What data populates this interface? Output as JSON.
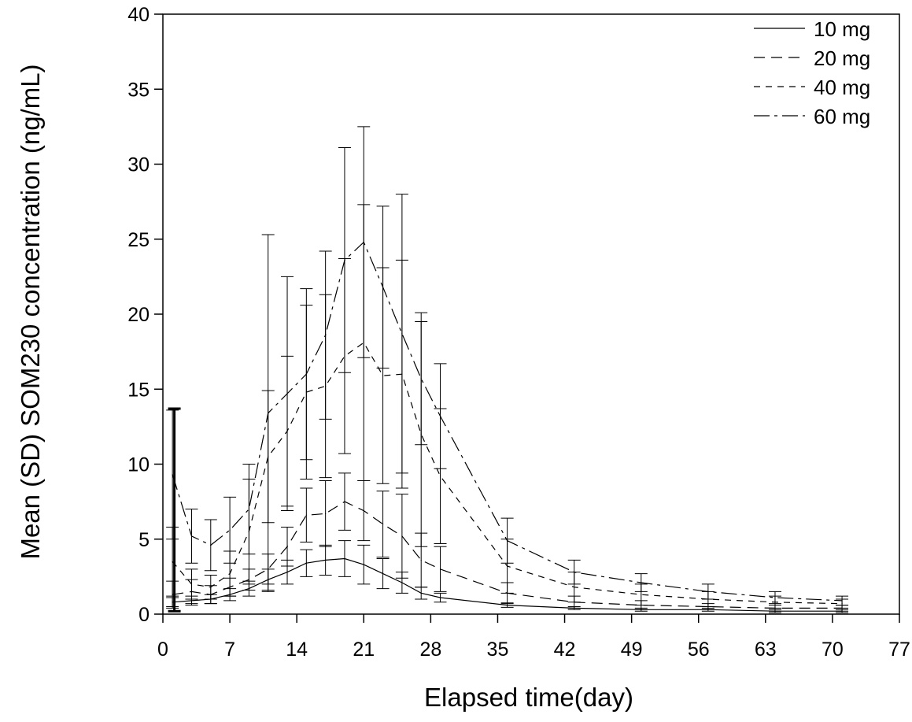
{
  "chart_data": {
    "type": "line",
    "xlabel": "Elapsed time(day)",
    "ylabel": "Mean (SD) SOM230 concentration (ng/mL)",
    "xlim": [
      0,
      77
    ],
    "ylim": [
      0,
      40
    ],
    "xticks": [
      0,
      7,
      14,
      21,
      28,
      35,
      42,
      49,
      56,
      63,
      70,
      77
    ],
    "yticks": [
      0,
      5,
      10,
      15,
      20,
      25,
      30,
      35,
      40
    ],
    "legend_position": "top-right",
    "grid": false,
    "series": [
      {
        "name": "10 mg",
        "dash": "",
        "x": [
          1,
          3,
          5,
          7,
          9,
          11,
          13,
          15,
          17,
          19,
          21,
          23,
          25,
          27,
          29,
          36,
          43,
          50,
          57,
          64,
          71
        ],
        "y": [
          0.8,
          0.9,
          1.0,
          1.3,
          1.7,
          2.3,
          2.8,
          3.4,
          3.6,
          3.7,
          3.3,
          2.7,
          2.1,
          1.4,
          1.1,
          0.6,
          0.4,
          0.3,
          0.3,
          0.2,
          0.2
        ],
        "sd": [
          0.3,
          0.3,
          0.3,
          0.4,
          0.5,
          0.7,
          0.8,
          0.9,
          1.0,
          1.2,
          1.3,
          1.0,
          0.7,
          0.4,
          0.3,
          0.15,
          0.1,
          0.1,
          0.1,
          0.1,
          0.1
        ]
      },
      {
        "name": "20 mg",
        "dash": "14,8",
        "x": [
          1,
          3,
          5,
          7,
          9,
          11,
          13,
          15,
          17,
          19,
          21,
          23,
          25,
          27,
          29,
          36,
          43,
          50,
          57,
          64,
          71
        ],
        "y": [
          1.3,
          1.5,
          1.3,
          1.8,
          2.3,
          3.0,
          4.5,
          6.6,
          6.7,
          7.5,
          6.9,
          6.0,
          5.2,
          3.6,
          3.0,
          1.4,
          0.8,
          0.6,
          0.5,
          0.4,
          0.4
        ],
        "sd": [
          0.9,
          0.8,
          0.6,
          0.6,
          0.7,
          1.0,
          1.3,
          1.8,
          2.2,
          1.9,
          2.0,
          2.2,
          2.8,
          1.8,
          1.5,
          0.7,
          0.4,
          0.3,
          0.2,
          0.2,
          0.2
        ]
      },
      {
        "name": "40 mg",
        "dash": "8,7",
        "x": [
          1,
          3,
          5,
          7,
          9,
          11,
          13,
          15,
          17,
          19,
          21,
          23,
          25,
          27,
          29,
          36,
          43,
          50,
          57,
          64,
          71
        ],
        "y": [
          3.5,
          2.0,
          1.8,
          2.7,
          5.5,
          10.5,
          12.2,
          14.8,
          15.2,
          17.2,
          18.1,
          15.9,
          16.0,
          12.0,
          9.2,
          3.2,
          1.8,
          1.3,
          1.0,
          0.8,
          0.7
        ],
        "sd": [
          2.3,
          1.0,
          0.8,
          1.5,
          3.5,
          4.4,
          5.0,
          5.8,
          6.1,
          6.5,
          9.2,
          7.2,
          7.6,
          7.5,
          4.5,
          1.8,
          1.0,
          0.7,
          0.5,
          0.4,
          0.3
        ]
      },
      {
        "name": "60 mg",
        "dash": "20,6,4,6",
        "x": [
          1,
          3,
          5,
          7,
          9,
          11,
          13,
          15,
          17,
          19,
          21,
          23,
          25,
          27,
          29,
          36,
          43,
          50,
          57,
          64,
          71
        ],
        "y": [
          9.3,
          5.2,
          4.6,
          5.6,
          7.0,
          13.4,
          14.7,
          16.0,
          18.6,
          23.6,
          24.8,
          21.8,
          18.7,
          15.7,
          13.2,
          4.9,
          2.8,
          2.1,
          1.5,
          1.1,
          0.9
        ],
        "sd": [
          4.3,
          1.8,
          1.7,
          2.2,
          3.0,
          11.9,
          7.8,
          5.7,
          5.6,
          7.5,
          7.7,
          5.4,
          9.3,
          4.4,
          3.5,
          1.5,
          0.8,
          0.6,
          0.5,
          0.4,
          0.3
        ]
      }
    ]
  }
}
